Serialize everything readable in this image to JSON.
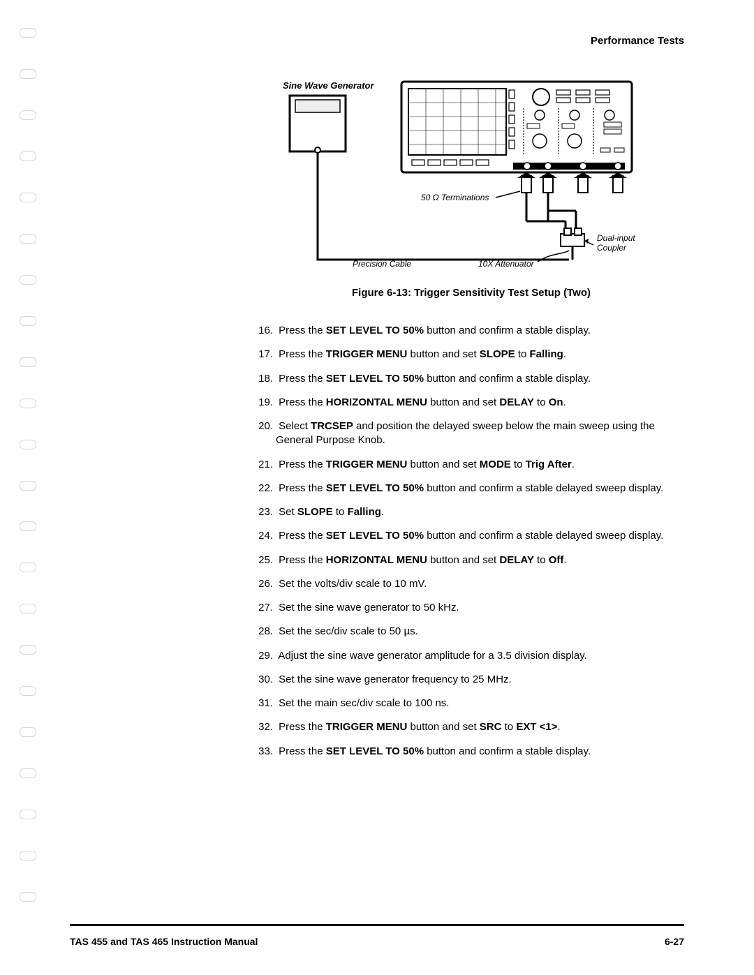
{
  "header": {
    "title": "Performance Tests"
  },
  "figure": {
    "labels": {
      "generator": "Sine Wave Generator",
      "terminations": "50 Ω Terminations",
      "precision_cable": "Precision Cable",
      "attenuator": "10X Attenuator",
      "coupler_l1": "Dual-input",
      "coupler_l2": "Coupler"
    },
    "caption": "Figure 6-13:  Trigger Sensitivity Test Setup (Two)",
    "colors": {
      "stroke": "#000000",
      "fill_bg": "#ffffff",
      "fill_shade": "#eeeeee"
    }
  },
  "steps": [
    {
      "n": "16.",
      "segments": [
        {
          "t": "Press the "
        },
        {
          "t": "SET LEVEL TO 50%",
          "b": true
        },
        {
          "t": " button and confirm a stable display."
        }
      ]
    },
    {
      "n": "17.",
      "segments": [
        {
          "t": "Press the "
        },
        {
          "t": "TRIGGER MENU",
          "b": true
        },
        {
          "t": " button and set "
        },
        {
          "t": "SLOPE",
          "b": true
        },
        {
          "t": " to "
        },
        {
          "t": "Falling",
          "b": true
        },
        {
          "t": "."
        }
      ]
    },
    {
      "n": "18.",
      "segments": [
        {
          "t": "Press the "
        },
        {
          "t": "SET LEVEL TO 50%",
          "b": true
        },
        {
          "t": " button and confirm a stable display."
        }
      ]
    },
    {
      "n": "19.",
      "segments": [
        {
          "t": "Press the "
        },
        {
          "t": "HORIZONTAL MENU",
          "b": true
        },
        {
          "t": " button and set "
        },
        {
          "t": "DELAY",
          "b": true
        },
        {
          "t": " to "
        },
        {
          "t": "On",
          "b": true
        },
        {
          "t": "."
        }
      ]
    },
    {
      "n": "20.",
      "segments": [
        {
          "t": "Select "
        },
        {
          "t": "TRCSEP",
          "b": true
        },
        {
          "t": " and position the delayed sweep below the main sweep using the General Purpose Knob."
        }
      ]
    },
    {
      "n": "21.",
      "segments": [
        {
          "t": "Press the "
        },
        {
          "t": "TRIGGER MENU",
          "b": true
        },
        {
          "t": " button and set "
        },
        {
          "t": "MODE",
          "b": true
        },
        {
          "t": " to "
        },
        {
          "t": "Trig After",
          "b": true
        },
        {
          "t": "."
        }
      ]
    },
    {
      "n": "22.",
      "segments": [
        {
          "t": "Press the "
        },
        {
          "t": "SET LEVEL TO 50%",
          "b": true
        },
        {
          "t": " button and confirm a stable delayed sweep display."
        }
      ]
    },
    {
      "n": "23.",
      "segments": [
        {
          "t": "Set "
        },
        {
          "t": "SLOPE",
          "b": true
        },
        {
          "t": " to "
        },
        {
          "t": "Falling",
          "b": true
        },
        {
          "t": "."
        }
      ]
    },
    {
      "n": "24.",
      "segments": [
        {
          "t": "Press the "
        },
        {
          "t": "SET LEVEL TO 50%",
          "b": true
        },
        {
          "t": " button and confirm a stable delayed sweep display."
        }
      ]
    },
    {
      "n": "25.",
      "segments": [
        {
          "t": "Press the "
        },
        {
          "t": "HORIZONTAL MENU",
          "b": true
        },
        {
          "t": " button and set "
        },
        {
          "t": "DELAY",
          "b": true
        },
        {
          "t": " to "
        },
        {
          "t": "Off",
          "b": true
        },
        {
          "t": "."
        }
      ]
    },
    {
      "n": "26.",
      "segments": [
        {
          "t": "Set the volts/div scale to 10 mV."
        }
      ]
    },
    {
      "n": "27.",
      "segments": [
        {
          "t": "Set the sine wave generator to 50 kHz."
        }
      ]
    },
    {
      "n": "28.",
      "segments": [
        {
          "t": "Set the sec/div scale to 50 µs."
        }
      ]
    },
    {
      "n": "29.",
      "segments": [
        {
          "t": "Adjust the sine wave generator amplitude for a 3.5 division display."
        }
      ]
    },
    {
      "n": "30.",
      "segments": [
        {
          "t": "Set the sine wave generator frequency to 25 MHz."
        }
      ]
    },
    {
      "n": "31.",
      "segments": [
        {
          "t": "Set the main sec/div scale to 100 ns."
        }
      ]
    },
    {
      "n": "32.",
      "segments": [
        {
          "t": "Press the "
        },
        {
          "t": "TRIGGER MENU",
          "b": true
        },
        {
          "t": " button and set "
        },
        {
          "t": "SRC",
          "b": true
        },
        {
          "t": " to "
        },
        {
          "t": "EXT <1>",
          "b": true
        },
        {
          "t": "."
        }
      ]
    },
    {
      "n": "33.",
      "segments": [
        {
          "t": "Press the "
        },
        {
          "t": "SET LEVEL TO 50%",
          "b": true
        },
        {
          "t": " button and confirm a stable display."
        }
      ]
    }
  ],
  "footer": {
    "left": "TAS 455 and TAS 465 Instruction Manual",
    "right": "6-27"
  }
}
